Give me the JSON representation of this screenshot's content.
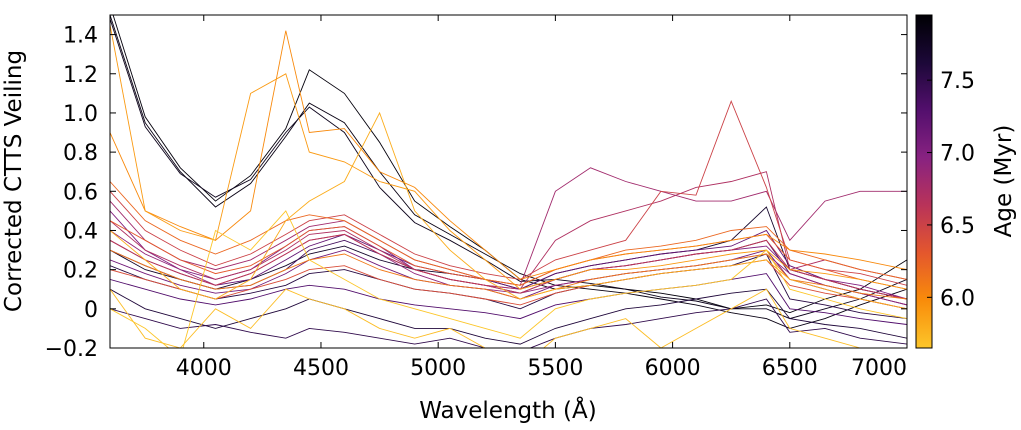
{
  "chart_data": {
    "type": "line",
    "xlabel": "Wavelength (Å)",
    "ylabel": "Corrected  CTTS  Veiling",
    "xlim": [
      3600,
      7000
    ],
    "ylim": [
      -0.2,
      1.5
    ],
    "xticks": [
      4000,
      4500,
      5000,
      5500,
      6000,
      6500,
      7000
    ],
    "xtick_labels": [
      "4000",
      "4500",
      "5000",
      "5500",
      "6000",
      "6500",
      "7000"
    ],
    "yticks": [
      -0.2,
      0,
      0.2,
      0.4,
      0.6,
      0.8,
      1.0,
      1.2,
      1.4
    ],
    "ytick_labels": [
      "−0.2",
      "0",
      "0.2",
      "0.4",
      "0.6",
      "0.8",
      "1.0",
      "1.2",
      "1.4"
    ],
    "grid": false,
    "x": [
      3600,
      3750,
      3900,
      4050,
      4200,
      4350,
      4450,
      4600,
      4750,
      4900,
      5050,
      5200,
      5350,
      5500,
      5650,
      5800,
      5950,
      6100,
      6250,
      6400,
      6500,
      6650,
      6800,
      7000
    ],
    "series": [
      {
        "age": 7.9,
        "values": [
          1.55,
          0.98,
          0.72,
          0.55,
          0.68,
          0.92,
          1.22,
          1.1,
          0.85,
          0.55,
          0.42,
          0.3,
          0.15,
          0.1,
          0.12,
          0.1,
          0.08,
          0.05,
          0.0,
          0.02,
          -0.02,
          0.05,
          0.1,
          0.25
        ]
      },
      {
        "age": 7.85,
        "values": [
          1.5,
          0.95,
          0.7,
          0.52,
          0.64,
          0.88,
          1.05,
          0.95,
          0.7,
          0.48,
          0.38,
          0.28,
          0.18,
          0.12,
          0.1,
          0.08,
          0.05,
          0.02,
          -0.02,
          -0.05,
          -0.1,
          -0.05,
          0.02,
          0.1
        ]
      },
      {
        "age": 7.8,
        "values": [
          1.48,
          0.93,
          0.69,
          0.57,
          0.66,
          0.9,
          1.03,
          0.9,
          0.62,
          0.44,
          0.35,
          0.25,
          0.14,
          0.15,
          0.13,
          0.1,
          0.06,
          0.04,
          0.0,
          0.0,
          -0.05,
          0.0,
          0.05,
          0.15
        ]
      },
      {
        "age": 7.7,
        "values": [
          0.3,
          0.2,
          0.15,
          0.1,
          0.15,
          0.22,
          0.28,
          0.32,
          0.25,
          0.2,
          0.18,
          0.15,
          0.1,
          0.18,
          0.22,
          0.25,
          0.28,
          0.3,
          0.35,
          0.52,
          0.2,
          0.15,
          0.1,
          0.05
        ]
      },
      {
        "age": 7.6,
        "values": [
          0.1,
          0.0,
          -0.05,
          -0.1,
          -0.05,
          0.0,
          0.05,
          0.0,
          -0.05,
          -0.1,
          -0.1,
          -0.15,
          -0.18,
          -0.1,
          -0.05,
          0.0,
          0.02,
          0.05,
          0.08,
          0.1,
          -0.05,
          -0.08,
          -0.1,
          -0.15
        ]
      },
      {
        "age": 7.55,
        "values": [
          0.22,
          0.15,
          0.1,
          0.05,
          0.08,
          0.12,
          0.18,
          0.2,
          0.15,
          0.1,
          0.08,
          0.05,
          0.0,
          0.08,
          0.12,
          0.15,
          0.18,
          0.2,
          0.22,
          0.28,
          0.05,
          0.02,
          -0.02,
          -0.05
        ]
      },
      {
        "age": 7.5,
        "values": [
          0.0,
          -0.05,
          -0.1,
          -0.08,
          -0.12,
          -0.15,
          -0.1,
          -0.12,
          -0.15,
          -0.18,
          -0.15,
          -0.2,
          -0.22,
          -0.15,
          -0.1,
          -0.08,
          -0.05,
          -0.02,
          0.0,
          0.05,
          -0.12,
          -0.1,
          -0.15,
          -0.18
        ]
      },
      {
        "age": 7.4,
        "values": [
          0.3,
          0.22,
          0.15,
          0.1,
          0.12,
          0.2,
          0.3,
          0.35,
          0.28,
          0.2,
          0.15,
          0.12,
          0.08,
          0.15,
          0.2,
          0.22,
          0.25,
          0.28,
          0.3,
          0.35,
          0.18,
          0.12,
          0.08,
          0.02
        ]
      },
      {
        "age": 7.3,
        "values": [
          0.15,
          0.1,
          0.05,
          0.02,
          0.05,
          0.1,
          0.12,
          0.1,
          0.05,
          0.02,
          0.0,
          -0.02,
          -0.05,
          0.02,
          0.05,
          0.08,
          0.1,
          0.12,
          0.15,
          0.18,
          0.0,
          -0.02,
          -0.05,
          -0.08
        ]
      },
      {
        "age": 7.2,
        "values": [
          0.35,
          0.25,
          0.18,
          0.12,
          0.15,
          0.25,
          0.32,
          0.38,
          0.3,
          0.22,
          0.18,
          0.15,
          0.1,
          0.18,
          0.22,
          0.25,
          0.28,
          0.3,
          0.32,
          0.4,
          0.22,
          0.15,
          0.1,
          0.05
        ]
      },
      {
        "age": 7.1,
        "values": [
          0.25,
          0.18,
          0.12,
          0.08,
          0.1,
          0.18,
          0.25,
          0.3,
          0.22,
          0.15,
          0.12,
          0.1,
          0.05,
          0.12,
          0.15,
          0.18,
          0.2,
          0.22,
          0.25,
          0.3,
          0.15,
          0.1,
          0.05,
          0.0
        ]
      },
      {
        "age": 7.0,
        "values": [
          0.5,
          0.3,
          0.2,
          0.15,
          0.2,
          0.32,
          0.4,
          0.42,
          0.32,
          0.2,
          0.15,
          0.12,
          0.1,
          0.15,
          0.2,
          0.22,
          0.25,
          0.28,
          0.3,
          0.32,
          0.2,
          0.15,
          0.12,
          0.05
        ]
      },
      {
        "age": 6.9,
        "values": [
          0.4,
          0.28,
          0.2,
          0.12,
          0.18,
          0.28,
          0.35,
          0.38,
          0.28,
          0.18,
          0.12,
          0.1,
          0.08,
          0.12,
          0.15,
          0.18,
          0.2,
          0.22,
          0.25,
          0.28,
          0.18,
          0.12,
          0.08,
          0.02
        ]
      },
      {
        "age": 6.8,
        "values": [
          0.55,
          0.35,
          0.25,
          0.2,
          0.25,
          0.35,
          0.42,
          0.45,
          0.35,
          0.25,
          0.2,
          0.15,
          0.12,
          0.6,
          0.72,
          0.65,
          0.6,
          0.55,
          0.55,
          0.6,
          0.35,
          0.55,
          0.6,
          0.6
        ]
      },
      {
        "age": 6.7,
        "values": [
          0.45,
          0.3,
          0.22,
          0.15,
          0.2,
          0.3,
          0.38,
          0.4,
          0.3,
          0.2,
          0.15,
          0.12,
          0.1,
          0.35,
          0.45,
          0.5,
          0.55,
          0.62,
          0.65,
          0.7,
          0.2,
          0.25,
          0.2,
          0.15
        ]
      },
      {
        "age": 6.6,
        "values": [
          0.35,
          0.25,
          0.18,
          0.12,
          0.18,
          0.28,
          0.35,
          0.38,
          0.28,
          0.2,
          0.15,
          0.12,
          0.08,
          0.15,
          0.2,
          0.22,
          0.25,
          0.28,
          0.3,
          0.35,
          0.2,
          0.15,
          0.1,
          0.05
        ]
      },
      {
        "age": 6.5,
        "values": [
          0.6,
          0.4,
          0.3,
          0.22,
          0.28,
          0.38,
          0.45,
          0.48,
          0.38,
          0.28,
          0.22,
          0.18,
          0.15,
          0.25,
          0.3,
          0.35,
          0.6,
          0.58,
          1.06,
          0.62,
          0.25,
          0.2,
          0.18,
          0.12
        ]
      },
      {
        "age": 6.4,
        "values": [
          0.2,
          0.15,
          0.1,
          0.05,
          0.1,
          0.15,
          0.2,
          0.22,
          0.15,
          0.1,
          0.08,
          0.05,
          0.02,
          0.08,
          0.12,
          0.15,
          0.18,
          0.2,
          0.22,
          0.25,
          0.12,
          0.08,
          0.05,
          0.0
        ]
      },
      {
        "age": 6.3,
        "values": [
          0.45,
          0.35,
          0.25,
          0.18,
          0.22,
          0.32,
          0.4,
          0.42,
          0.32,
          0.22,
          0.18,
          0.15,
          0.12,
          0.2,
          0.25,
          0.28,
          0.3,
          0.32,
          0.35,
          0.38,
          0.25,
          0.2,
          0.15,
          0.1
        ]
      },
      {
        "age": 6.2,
        "values": [
          0.65,
          0.45,
          0.35,
          0.28,
          0.35,
          0.45,
          0.48,
          0.45,
          0.35,
          0.25,
          0.2,
          0.15,
          0.12,
          0.2,
          0.25,
          0.3,
          0.32,
          0.35,
          0.4,
          0.42,
          0.3,
          0.25,
          0.2,
          0.15
        ]
      },
      {
        "age": 6.1,
        "values": [
          0.3,
          0.22,
          0.15,
          0.1,
          0.12,
          0.2,
          0.25,
          0.28,
          0.2,
          0.15,
          0.12,
          0.1,
          0.05,
          0.1,
          0.15,
          0.18,
          0.2,
          0.22,
          0.25,
          0.28,
          0.15,
          0.12,
          0.08,
          0.05
        ]
      },
      {
        "age": 6.0,
        "values": [
          0.9,
          0.5,
          0.42,
          0.35,
          0.5,
          1.42,
          0.9,
          0.92,
          0.7,
          0.62,
          0.45,
          0.3,
          0.15,
          0.2,
          0.25,
          0.28,
          0.3,
          0.32,
          0.35,
          0.38,
          0.3,
          0.28,
          0.25,
          0.2
        ]
      },
      {
        "age": 5.9,
        "values": [
          1.45,
          0.5,
          0.4,
          0.35,
          1.1,
          1.2,
          0.8,
          0.75,
          0.65,
          0.6,
          0.4,
          0.25,
          0.1,
          0.15,
          0.2,
          0.2,
          0.22,
          0.25,
          0.28,
          0.3,
          0.2,
          0.18,
          0.15,
          0.1
        ]
      },
      {
        "age": 5.8,
        "values": [
          0.4,
          0.25,
          0.1,
          0.05,
          0.15,
          0.45,
          0.55,
          0.65,
          1.0,
          0.5,
          0.3,
          0.15,
          0.05,
          0.1,
          0.12,
          0.15,
          0.18,
          0.2,
          0.22,
          0.25,
          0.15,
          0.1,
          0.05,
          0.0
        ]
      },
      {
        "age": 5.7,
        "values": [
          0.1,
          -0.15,
          -0.2,
          0.0,
          -0.1,
          0.1,
          0.05,
          0.0,
          -0.1,
          -0.15,
          -0.1,
          -0.2,
          -0.3,
          -0.15,
          -0.1,
          -0.05,
          -0.2,
          -0.1,
          0.0,
          0.1,
          -0.1,
          -0.15,
          -0.2,
          -0.25
        ]
      },
      {
        "age": 5.65,
        "values": [
          0.0,
          -0.1,
          -0.25,
          0.4,
          0.3,
          0.5,
          0.25,
          0.15,
          0.05,
          0.0,
          -0.05,
          -0.1,
          -0.15,
          0.0,
          0.05,
          0.08,
          0.1,
          0.12,
          0.15,
          0.3,
          0.1,
          0.05,
          0.0,
          -0.05
        ]
      }
    ]
  },
  "colorbar": {
    "label": "Age (Myr)",
    "ticks": [
      6.0,
      6.5,
      7.0,
      7.5
    ],
    "tick_labels": [
      "6.0",
      "6.5",
      "7.0",
      "7.5"
    ],
    "min": 5.65,
    "max": 7.95,
    "colormap_stops": [
      "#fcc62a",
      "#f98c0a",
      "#e4572d",
      "#b93359",
      "#882281",
      "#530f6d",
      "#1c0838",
      "#000004"
    ]
  }
}
